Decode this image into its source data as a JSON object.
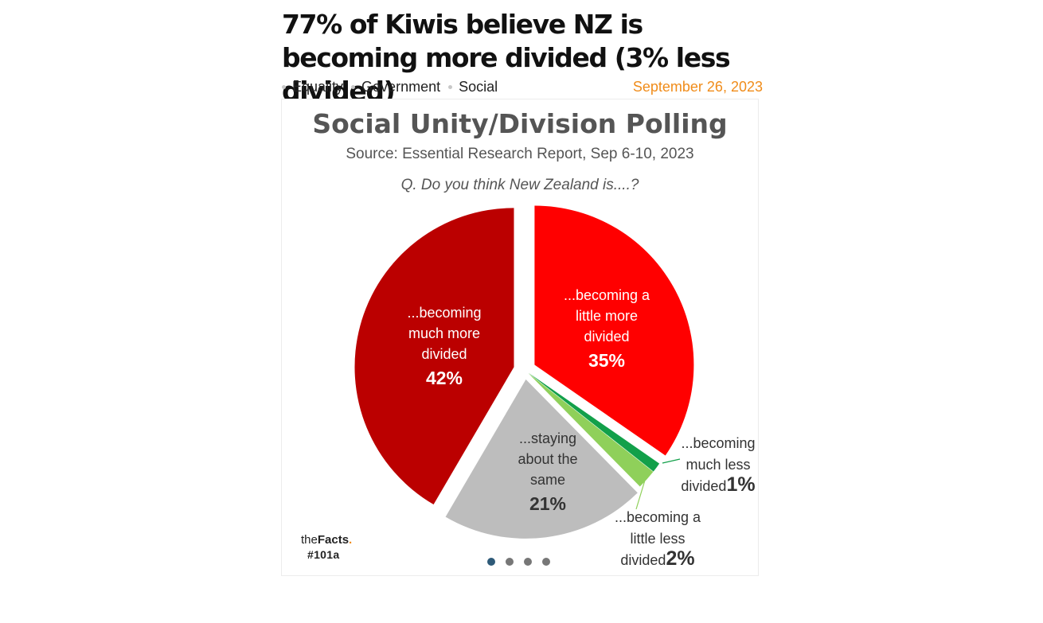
{
  "article": {
    "headline": "77% of Kiwis believe NZ is becoming more divided (3% less divided)",
    "tags": [
      "Equality",
      "Government",
      "Social"
    ],
    "date": "September 26, 2023"
  },
  "carousel": {
    "slide_count": 4,
    "active_index": 0
  },
  "brand": {
    "name_light": "the",
    "name_bold": "Facts",
    "name_dot": ".",
    "code": "#101a"
  },
  "colors": {
    "much_more": "#bb0000",
    "little_more": "#ff0000",
    "much_less": "#12a04a",
    "little_less": "#8fd05a",
    "same": "#bdbdbd",
    "accent": "#f08c1a"
  },
  "chart_data": {
    "type": "pie",
    "title": "Social Unity/Division Polling",
    "subtitle": "Source: Essential Research Report, Sep 6-10, 2023",
    "question": "Q. Do you think New Zealand is....?",
    "slices": [
      {
        "label_lines": [
          "...becoming a",
          "little more",
          "divided"
        ],
        "value": 35,
        "value_label": "35%",
        "color": "#ff0000"
      },
      {
        "label_lines": [
          "...becoming",
          "much less",
          "divided"
        ],
        "value": 1,
        "value_label": "1%",
        "color": "#12a04a"
      },
      {
        "label_lines": [
          "...becoming a",
          "little less",
          "divided"
        ],
        "value": 2,
        "value_label": "2%",
        "color": "#8fd05a"
      },
      {
        "label_lines": [
          "...staying",
          "about the",
          "same"
        ],
        "value": 21,
        "value_label": "21%",
        "color": "#bdbdbd"
      },
      {
        "label_lines": [
          "...becoming",
          "much more",
          "divided"
        ],
        "value": 42,
        "value_label": "42%",
        "color": "#bb0000"
      }
    ]
  }
}
